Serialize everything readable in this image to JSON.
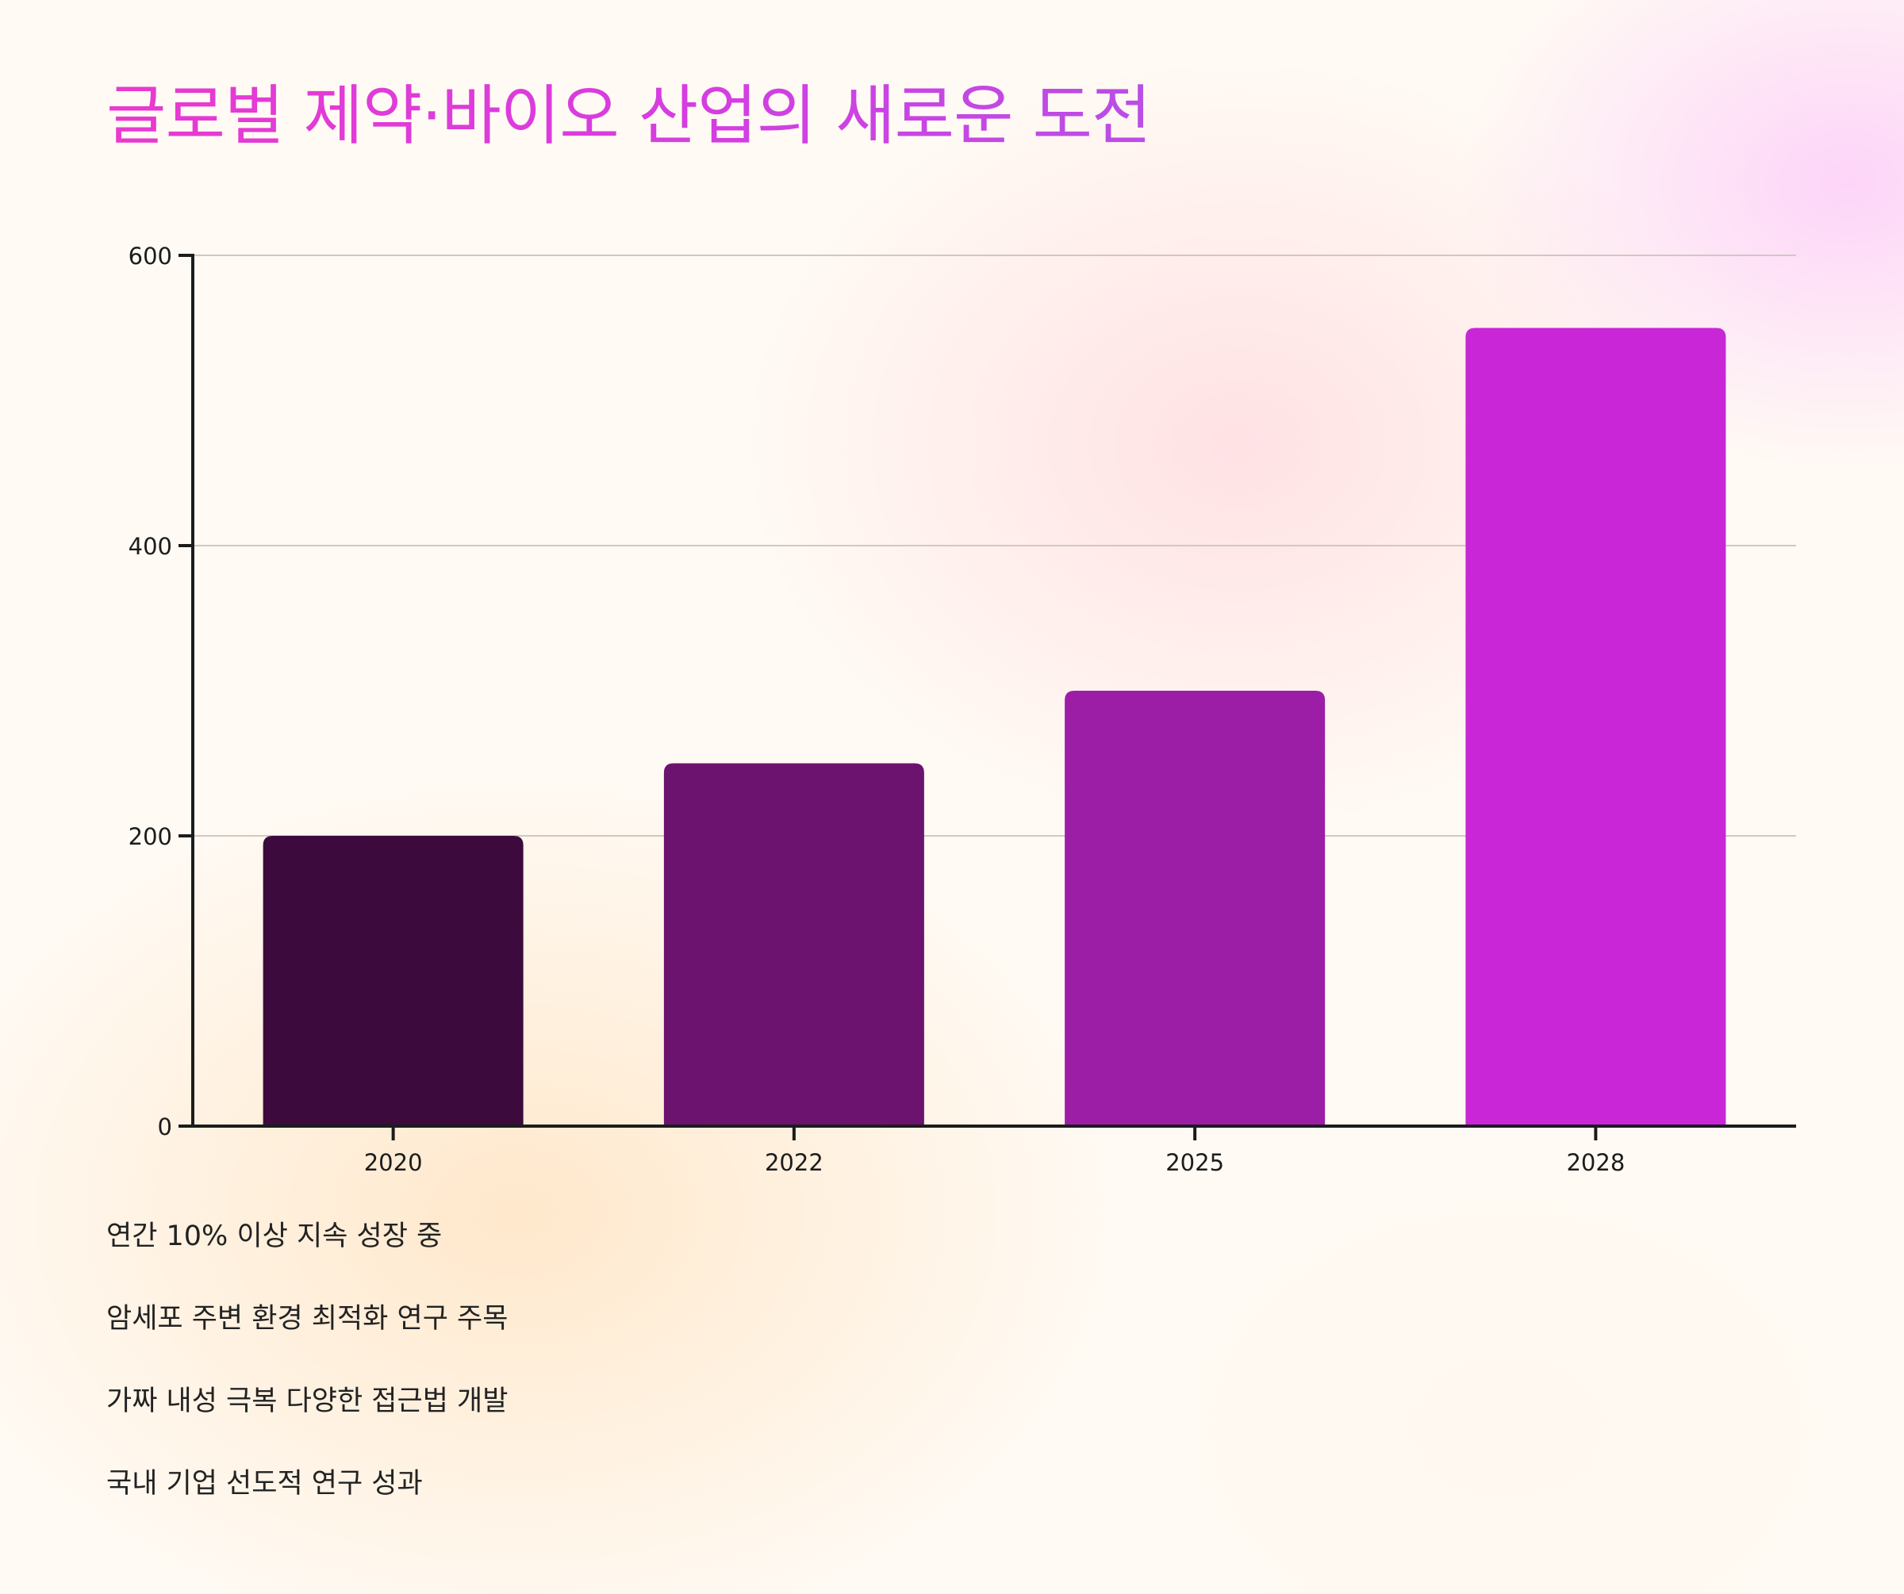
{
  "title": "글로벌 제약·바이오 산업의 새로운 도전",
  "chart_data": {
    "type": "bar",
    "title": "",
    "xlabel": "",
    "ylabel": "",
    "categories": [
      "2020",
      "2022",
      "2025",
      "2028"
    ],
    "values": [
      200,
      250,
      300,
      550
    ],
    "ylim": [
      0,
      600
    ],
    "yticks": [
      0,
      200,
      400,
      600
    ],
    "grid": true,
    "legend": "none",
    "colors": [
      "#3d0a3d",
      "#6b136e",
      "#9c1ea6",
      "#c926d8"
    ]
  },
  "notes": [
    "연간 10% 이상 지속 성장 중",
    "암세포 주변 환경 최적화 연구 주목",
    "가짜 내성 극복 다양한 접근법 개발",
    "국내 기업 선도적 연구 성과"
  ],
  "colors": {
    "axis": "#1c1c1c",
    "grid": "#cfc8c4"
  }
}
